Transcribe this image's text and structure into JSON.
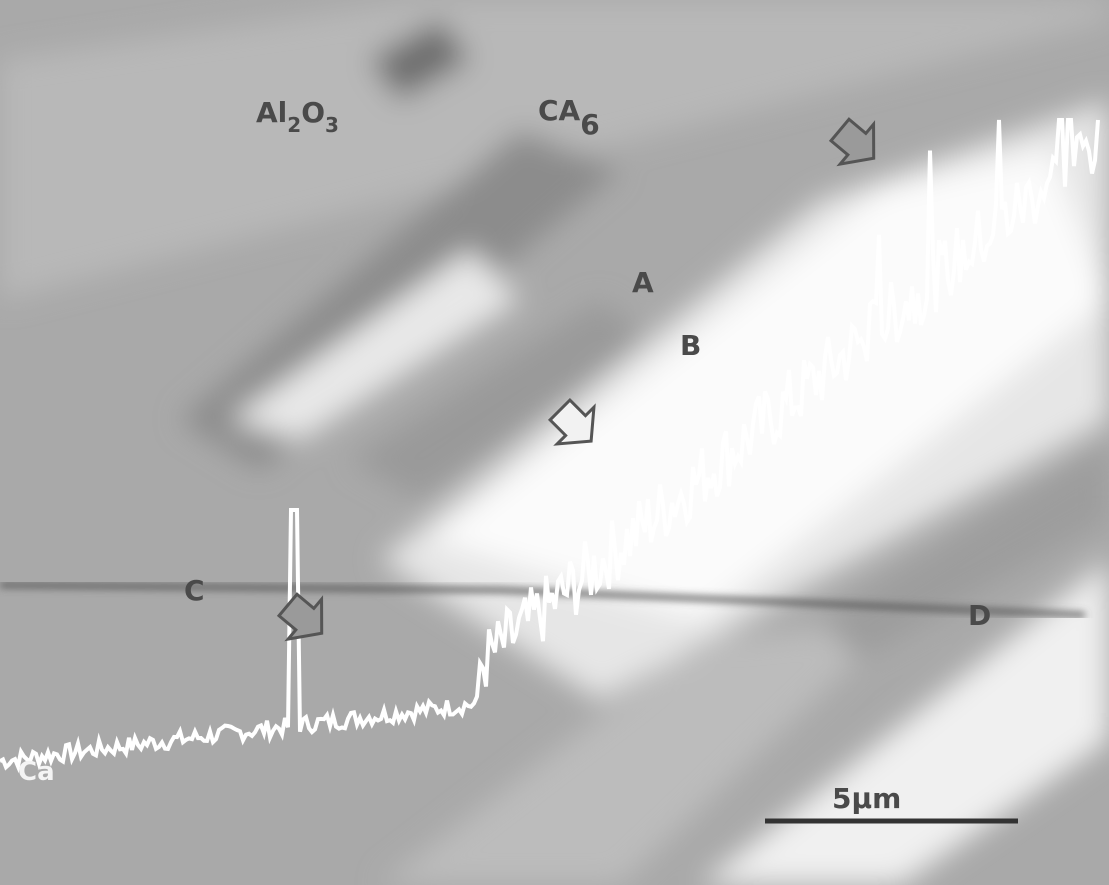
{
  "labels": {
    "phase_1": {
      "parts": [
        "Al",
        "2",
        "O",
        "3"
      ]
    },
    "phase_2": {
      "parts": [
        "CA",
        "6"
      ]
    },
    "point_a": "A",
    "point_b": "B",
    "point_c": "C",
    "point_d": "D",
    "element": "Ca",
    "scale_bar": "5μm"
  }
}
